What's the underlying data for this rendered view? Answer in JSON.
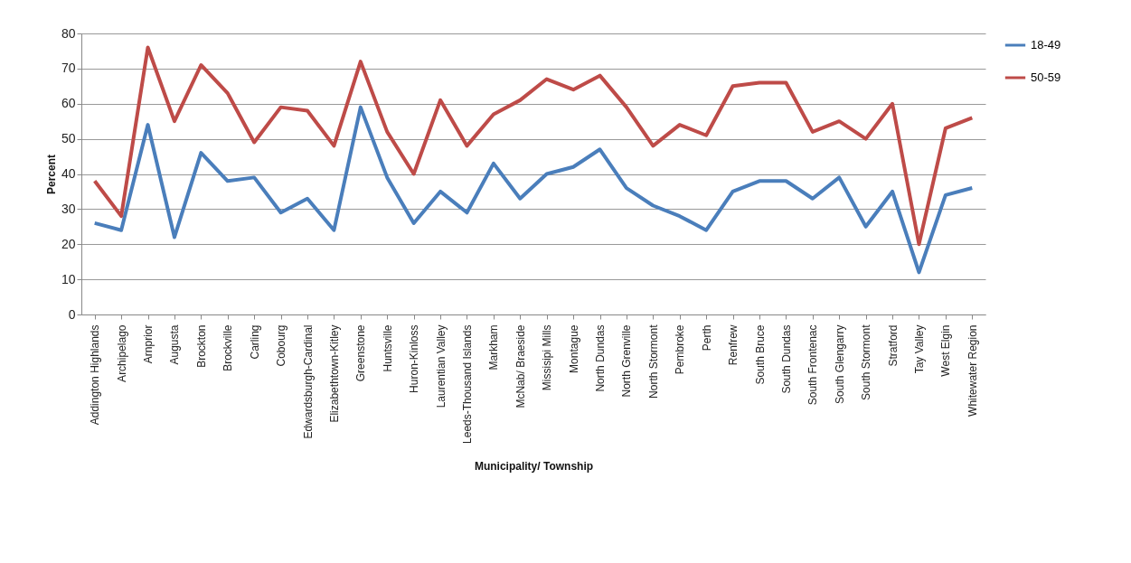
{
  "chart_data": {
    "type": "line",
    "xlabel": "Municipality/ Township",
    "ylabel": "Percent",
    "categories": [
      "Addington Highlands",
      "Archipelago",
      "Arnprior",
      "Augusta",
      "Brockton",
      "Brockville",
      "Carling",
      "Cobourg",
      "Edwardsburgh-Cardinal",
      "Elizabethtown-Kitley",
      "Greenstone",
      "Huntsville",
      "Huron-Kinloss",
      "Laurentian Valley",
      "Leeds-Thousand Islands",
      "Markham",
      "McNab/ Braeside",
      "Missisipi Mills",
      "Montague",
      "North Dundas",
      "North Grenville",
      "North Stormont",
      "Pembroke",
      "Perth",
      "Renfrew",
      "South Bruce",
      "South Dundas",
      "South Frontenac",
      "South Glengarry",
      "South Stormont",
      "Stratford",
      "Tay Valley",
      "West Elgin",
      "Whitewater Region"
    ],
    "series": [
      {
        "name": "18-49",
        "color": "#4a7ebb",
        "values": [
          26,
          24,
          54,
          22,
          46,
          38,
          39,
          29,
          33,
          24,
          59,
          39,
          26,
          35,
          29,
          43,
          33,
          40,
          42,
          47,
          36,
          31,
          28,
          24,
          35,
          38,
          38,
          33,
          39,
          25,
          35,
          12,
          34,
          36
        ]
      },
      {
        "name": "50-59",
        "color": "#be4b48",
        "values": [
          38,
          28,
          76,
          55,
          71,
          63,
          49,
          59,
          58,
          48,
          72,
          52,
          40,
          61,
          48,
          57,
          61,
          67,
          64,
          68,
          59,
          48,
          54,
          51,
          65,
          66,
          66,
          52,
          55,
          50,
          60,
          20,
          53,
          56
        ]
      }
    ],
    "ylim": [
      0,
      80
    ],
    "yticks": [
      0,
      10,
      20,
      30,
      40,
      50,
      60,
      70,
      80
    ],
    "grid": "y",
    "legend": "right",
    "marker": "none",
    "line_style": "solid"
  }
}
